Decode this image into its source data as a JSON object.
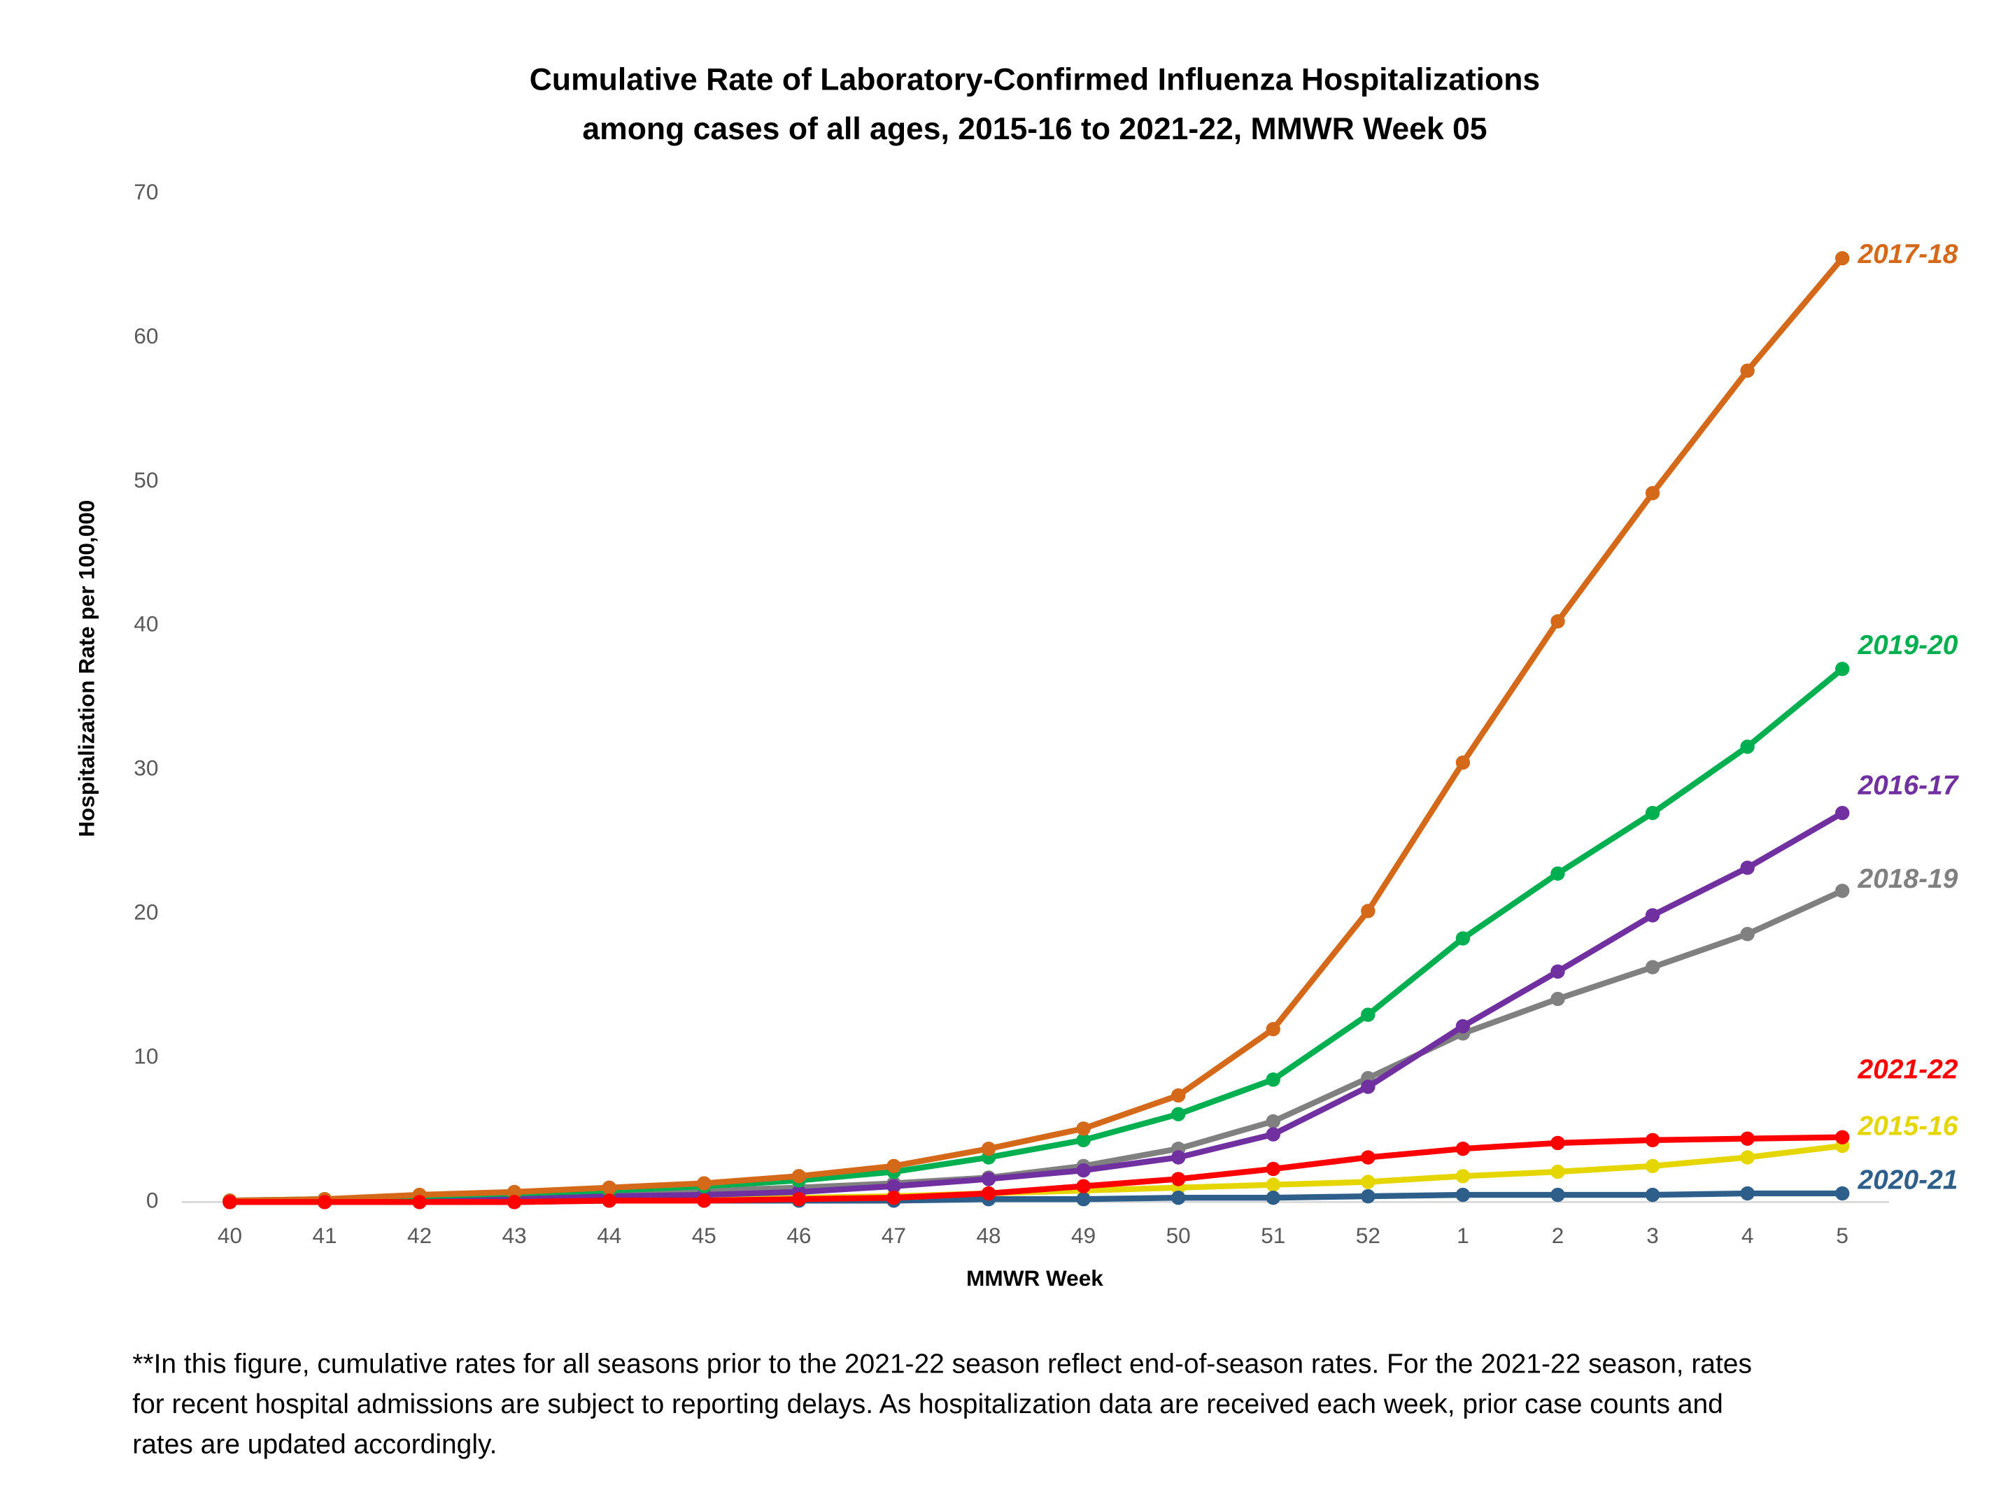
{
  "chart_data": {
    "type": "line",
    "title": [
      "Cumulative Rate of Laboratory-Confirmed Influenza Hospitalizations",
      "among cases of all ages, 2015-16 to 2021-22, MMWR  Week 05"
    ],
    "x_label": "MMWR Week",
    "y_label": "Hospitalization  Rate per 100,000",
    "categories": [
      "40",
      "41",
      "42",
      "43",
      "44",
      "45",
      "46",
      "47",
      "48",
      "49",
      "50",
      "51",
      "52",
      "1",
      "2",
      "3",
      "4",
      "5"
    ],
    "series": [
      {
        "name": "2015-16",
        "color": "#e6d600",
        "values": [
          0.0,
          0.0,
          0.1,
          0.1,
          0.1,
          0.2,
          0.3,
          0.4,
          0.6,
          0.8,
          1.0,
          1.2,
          1.4,
          1.8,
          2.1,
          2.5,
          3.1,
          3.9
        ]
      },
      {
        "name": "2020-21",
        "color": "#2e5f8a",
        "values": [
          0.0,
          0.0,
          0.0,
          0.0,
          0.1,
          0.1,
          0.1,
          0.1,
          0.2,
          0.2,
          0.3,
          0.3,
          0.4,
          0.5,
          0.5,
          0.5,
          0.6,
          0.6
        ]
      },
      {
        "name": "2018-19",
        "color": "#808080",
        "values": [
          0.1,
          0.1,
          0.2,
          0.4,
          0.6,
          0.8,
          1.0,
          1.3,
          1.7,
          2.5,
          3.7,
          5.6,
          8.6,
          11.7,
          14.1,
          16.3,
          18.6,
          21.6
        ]
      },
      {
        "name": "2016-17",
        "color": "#7030a0",
        "values": [
          0.0,
          0.1,
          0.2,
          0.3,
          0.4,
          0.5,
          0.7,
          1.1,
          1.6,
          2.2,
          3.1,
          4.7,
          8.0,
          12.2,
          16.0,
          19.9,
          23.2,
          27.0
        ]
      },
      {
        "name": "2019-20",
        "color": "#00b050",
        "values": [
          0.1,
          0.2,
          0.4,
          0.6,
          0.8,
          1.1,
          1.5,
          2.1,
          3.1,
          4.3,
          6.1,
          8.5,
          13.0,
          18.3,
          22.8,
          27.0,
          31.6,
          37.0
        ]
      },
      {
        "name": "2017-18",
        "color": "#d4691a",
        "values": [
          0.1,
          0.2,
          0.5,
          0.7,
          1.0,
          1.3,
          1.8,
          2.5,
          3.7,
          5.1,
          7.4,
          12.0,
          20.2,
          30.5,
          40.3,
          49.2,
          57.7,
          65.5
        ]
      },
      {
        "name": "2021-22",
        "color": "#ff0000",
        "values": [
          0.0,
          0.0,
          0.0,
          0.0,
          0.1,
          0.1,
          0.2,
          0.3,
          0.6,
          1.1,
          1.6,
          2.3,
          3.1,
          3.7,
          4.1,
          4.3,
          4.4,
          4.5
        ]
      }
    ],
    "ylim": [
      0,
      70
    ],
    "yticks": [
      0,
      10,
      20,
      30,
      40,
      50,
      60,
      70
    ],
    "footnote": [
      "**In this figure, cumulative rates for all seasons prior to the 2021-22 season reflect end-of-season rates. For the 2021-22 season, rates",
      "for recent hospital admissions are subject to reporting delays. As hospitalization data are received each week, prior case counts and",
      "rates are updated accordingly."
    ]
  }
}
